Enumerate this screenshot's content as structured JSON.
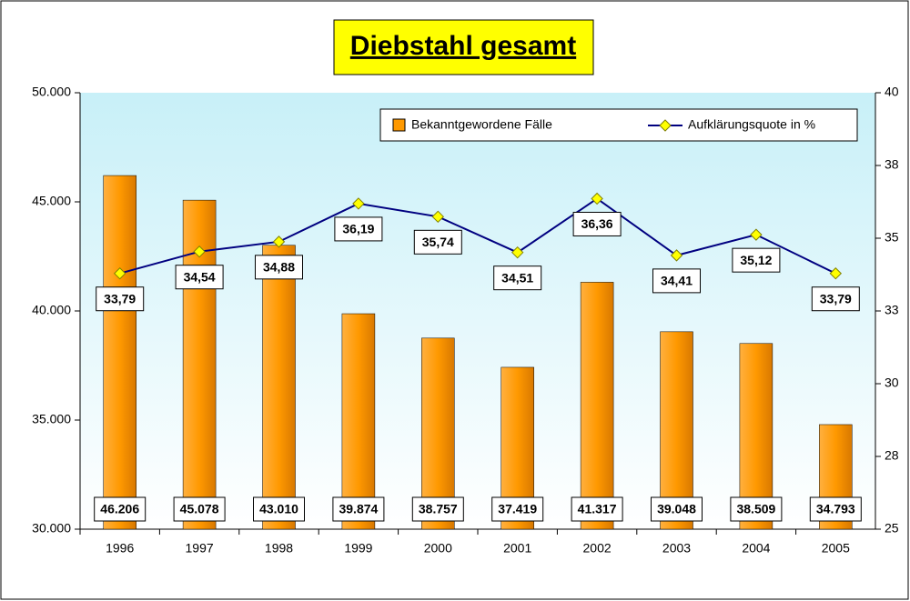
{
  "chart_data": {
    "type": "bar-line",
    "title": "Diebstahl gesamt",
    "categories": [
      "1996",
      "1997",
      "1998",
      "1999",
      "2000",
      "2001",
      "2002",
      "2003",
      "2004",
      "2005"
    ],
    "series": [
      {
        "name": "Bekanntgewordene Fälle",
        "type": "bar",
        "color": "#ff9900",
        "values": [
          46206,
          45078,
          43010,
          39874,
          38757,
          37419,
          41317,
          39048,
          38509,
          34793
        ],
        "value_labels": [
          "46.206",
          "45.078",
          "43.010",
          "39.874",
          "38.757",
          "37.419",
          "41.317",
          "39.048",
          "38.509",
          "34.793"
        ]
      },
      {
        "name": "Aufklärungsquote in %",
        "type": "line",
        "axis": "y2",
        "color": "#000080",
        "marker_color": "#ffff00",
        "values": [
          33.79,
          34.54,
          34.88,
          36.19,
          35.74,
          34.51,
          36.36,
          34.41,
          35.12,
          33.79
        ],
        "value_labels": [
          "33,79",
          "34,54",
          "34,88",
          "36,19",
          "35,74",
          "34,51",
          "36,36",
          "34,41",
          "35,12",
          "33,79"
        ]
      }
    ],
    "ylim": [
      30000,
      50000
    ],
    "yticks": [
      {
        "value": 30000,
        "label": "30.000"
      },
      {
        "value": 35000,
        "label": "35.000"
      },
      {
        "value": 40000,
        "label": "40.000"
      },
      {
        "value": 45000,
        "label": "45.000"
      },
      {
        "value": 50000,
        "label": "50.000"
      }
    ],
    "y2lim": [
      25,
      40
    ],
    "y2ticks": [
      25,
      {
        "value": 27.5,
        "label": "28"
      },
      30,
      {
        "value": 32.5,
        "label": "33"
      },
      35,
      {
        "value": 37.5,
        "label": "38"
      },
      40
    ],
    "legend": "top-right",
    "grid": false
  }
}
